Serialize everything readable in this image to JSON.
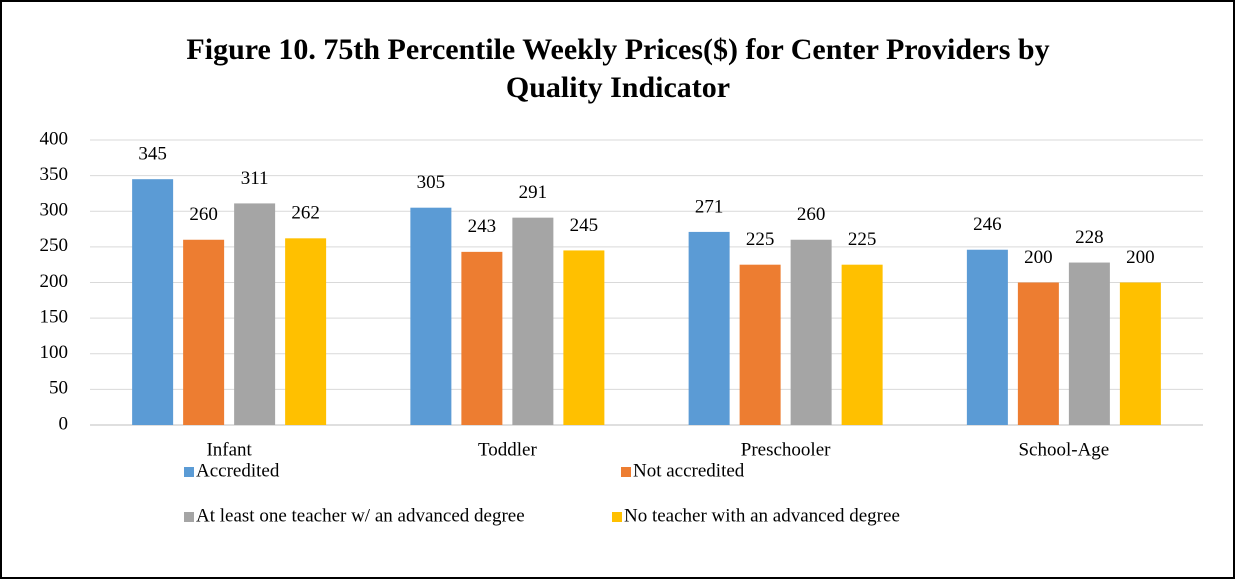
{
  "chart_data": {
    "type": "bar",
    "title": [
      "Figure 10. 75th Percentile Weekly Prices($) for Center Providers by",
      "Quality Indicator"
    ],
    "categories": [
      "Infant",
      "Toddler",
      "Preschooler",
      "School-Age"
    ],
    "series": [
      {
        "name": "Accredited",
        "color": "#5b9bd5",
        "values": [
          345,
          305,
          271,
          246
        ]
      },
      {
        "name": "Not accredited",
        "color": "#ed7d31",
        "values": [
          260,
          243,
          225,
          200
        ]
      },
      {
        "name": "At least one teacher w/ an advanced degree",
        "color": "#a5a5a5",
        "values": [
          311,
          291,
          260,
          228
        ]
      },
      {
        "name": "No teacher with an advanced degree",
        "color": "#ffc000",
        "values": [
          262,
          245,
          225,
          200
        ]
      }
    ],
    "ylim": [
      0,
      400
    ],
    "yticks": [
      0,
      50,
      100,
      150,
      200,
      250,
      300,
      350,
      400
    ],
    "grid": true
  }
}
